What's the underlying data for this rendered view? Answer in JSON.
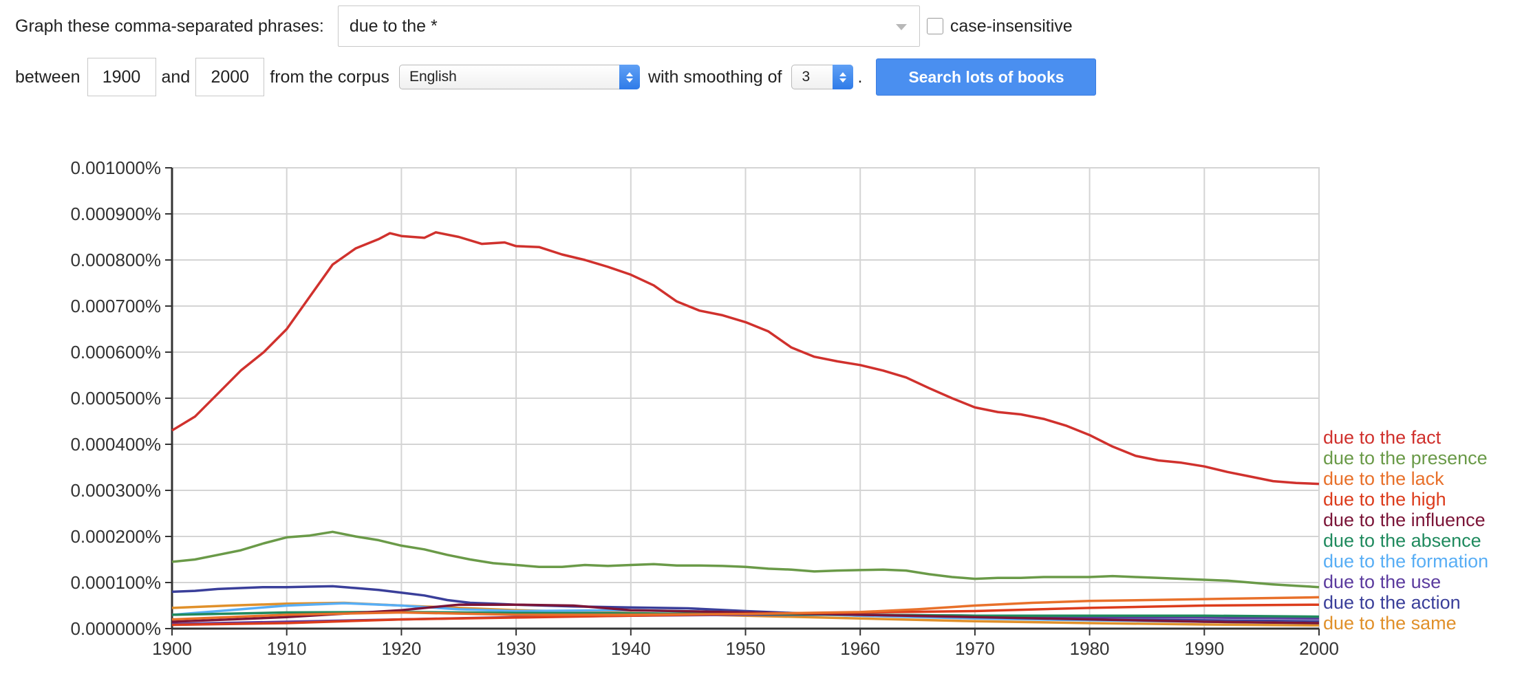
{
  "controls": {
    "phrases_label": "Graph these comma-separated phrases:",
    "query_value": "due to the *",
    "case_insensitive_label": "case-insensitive",
    "between_label": "between",
    "start_year": "1900",
    "and_label": "and",
    "end_year": "2000",
    "corpus_label": "from the corpus",
    "corpus_value": "English",
    "smoothing_label": "with smoothing of",
    "smoothing_value": "3",
    "period": ".",
    "search_button": "Search lots of books"
  },
  "chart_data": {
    "type": "line",
    "xlim": [
      1900,
      2000
    ],
    "ylim": [
      0,
      0.001
    ],
    "x_ticks": [
      "1900",
      "1910",
      "1920",
      "1930",
      "1940",
      "1950",
      "1960",
      "1970",
      "1980",
      "1990",
      "2000"
    ],
    "y_ticks": [
      "0.000000%",
      "0.000100%",
      "0.000200%",
      "0.000300%",
      "0.000400%",
      "0.000500%",
      "0.000600%",
      "0.000700%",
      "0.000800%",
      "0.000900%",
      "0.001000%"
    ],
    "grid": true,
    "legend_position": "right",
    "series": [
      {
        "name": "due to the fact",
        "color": "#d0312d",
        "label_color": "#d0312d",
        "points": [
          [
            1900,
            0.00043
          ],
          [
            1902,
            0.00046
          ],
          [
            1904,
            0.00051
          ],
          [
            1906,
            0.00056
          ],
          [
            1908,
            0.0006
          ],
          [
            1910,
            0.00065
          ],
          [
            1912,
            0.00072
          ],
          [
            1914,
            0.00079
          ],
          [
            1916,
            0.000825
          ],
          [
            1918,
            0.000845
          ],
          [
            1919,
            0.000858
          ],
          [
            1920,
            0.000852
          ],
          [
            1922,
            0.000848
          ],
          [
            1923,
            0.00086
          ],
          [
            1925,
            0.00085
          ],
          [
            1927,
            0.000835
          ],
          [
            1929,
            0.000838
          ],
          [
            1930,
            0.00083
          ],
          [
            1932,
            0.000828
          ],
          [
            1934,
            0.000812
          ],
          [
            1936,
            0.0008
          ],
          [
            1938,
            0.000785
          ],
          [
            1940,
            0.000768
          ],
          [
            1942,
            0.000745
          ],
          [
            1944,
            0.00071
          ],
          [
            1946,
            0.00069
          ],
          [
            1948,
            0.00068
          ],
          [
            1950,
            0.000665
          ],
          [
            1952,
            0.000645
          ],
          [
            1954,
            0.00061
          ],
          [
            1956,
            0.00059
          ],
          [
            1958,
            0.00058
          ],
          [
            1960,
            0.000572
          ],
          [
            1962,
            0.00056
          ],
          [
            1964,
            0.000545
          ],
          [
            1966,
            0.000522
          ],
          [
            1968,
            0.0005
          ],
          [
            1970,
            0.00048
          ],
          [
            1972,
            0.00047
          ],
          [
            1974,
            0.000465
          ],
          [
            1976,
            0.000455
          ],
          [
            1978,
            0.00044
          ],
          [
            1980,
            0.00042
          ],
          [
            1982,
            0.000395
          ],
          [
            1984,
            0.000375
          ],
          [
            1986,
            0.000365
          ],
          [
            1988,
            0.00036
          ],
          [
            1990,
            0.000352
          ],
          [
            1992,
            0.00034
          ],
          [
            1994,
            0.00033
          ],
          [
            1996,
            0.00032
          ],
          [
            1998,
            0.000316
          ],
          [
            2000,
            0.000314
          ]
        ]
      },
      {
        "name": "due to the presence",
        "color": "#6a9a48",
        "label_color": "#6a9a48",
        "points": [
          [
            1900,
            0.000145
          ],
          [
            1902,
            0.00015
          ],
          [
            1904,
            0.00016
          ],
          [
            1906,
            0.00017
          ],
          [
            1908,
            0.000185
          ],
          [
            1910,
            0.000198
          ],
          [
            1912,
            0.000202
          ],
          [
            1914,
            0.00021
          ],
          [
            1916,
            0.0002
          ],
          [
            1918,
            0.000192
          ],
          [
            1920,
            0.00018
          ],
          [
            1922,
            0.000172
          ],
          [
            1924,
            0.00016
          ],
          [
            1926,
            0.00015
          ],
          [
            1928,
            0.000142
          ],
          [
            1930,
            0.000138
          ],
          [
            1932,
            0.000134
          ],
          [
            1934,
            0.000134
          ],
          [
            1936,
            0.000138
          ],
          [
            1938,
            0.000136
          ],
          [
            1940,
            0.000138
          ],
          [
            1942,
            0.00014
          ],
          [
            1944,
            0.000137
          ],
          [
            1946,
            0.000137
          ],
          [
            1948,
            0.000136
          ],
          [
            1950,
            0.000134
          ],
          [
            1952,
            0.00013
          ],
          [
            1954,
            0.000128
          ],
          [
            1956,
            0.000124
          ],
          [
            1958,
            0.000126
          ],
          [
            1960,
            0.000127
          ],
          [
            1962,
            0.000128
          ],
          [
            1964,
            0.000126
          ],
          [
            1966,
            0.000118
          ],
          [
            1968,
            0.000112
          ],
          [
            1970,
            0.000108
          ],
          [
            1972,
            0.00011
          ],
          [
            1974,
            0.00011
          ],
          [
            1976,
            0.000112
          ],
          [
            1978,
            0.000112
          ],
          [
            1980,
            0.000112
          ],
          [
            1982,
            0.000114
          ],
          [
            1984,
            0.000112
          ],
          [
            1986,
            0.00011
          ],
          [
            1988,
            0.000108
          ],
          [
            1990,
            0.000106
          ],
          [
            1992,
            0.000104
          ],
          [
            1994,
            0.0001
          ],
          [
            1996,
            9.6e-05
          ],
          [
            1998,
            9.3e-05
          ],
          [
            2000,
            9e-05
          ]
        ]
      },
      {
        "name": "due to the lack",
        "color": "#e8702a",
        "label_color": "#e8702a",
        "points": [
          [
            1900,
            2e-05
          ],
          [
            1910,
            3e-05
          ],
          [
            1920,
            3.5e-05
          ],
          [
            1930,
            3e-05
          ],
          [
            1940,
            3e-05
          ],
          [
            1950,
            3.2e-05
          ],
          [
            1960,
            3.6e-05
          ],
          [
            1965,
            4.2e-05
          ],
          [
            1970,
            5e-05
          ],
          [
            1975,
            5.6e-05
          ],
          [
            1980,
            6e-05
          ],
          [
            1985,
            6.2e-05
          ],
          [
            1990,
            6.4e-05
          ],
          [
            1995,
            6.6e-05
          ],
          [
            2000,
            6.8e-05
          ]
        ]
      },
      {
        "name": "due to the high",
        "color": "#dc3c1c",
        "label_color": "#dc3c1c",
        "points": [
          [
            1900,
            8e-06
          ],
          [
            1910,
            1.2e-05
          ],
          [
            1920,
            2e-05
          ],
          [
            1930,
            2.4e-05
          ],
          [
            1940,
            2.8e-05
          ],
          [
            1950,
            3.2e-05
          ],
          [
            1960,
            3.5e-05
          ],
          [
            1970,
            3.8e-05
          ],
          [
            1980,
            4.5e-05
          ],
          [
            1990,
            5e-05
          ],
          [
            2000,
            5.2e-05
          ]
        ]
      },
      {
        "name": "due to the influence",
        "color": "#7b1538",
        "label_color": "#7b1538",
        "points": [
          [
            1900,
            1.5e-05
          ],
          [
            1910,
            2.5e-05
          ],
          [
            1920,
            4e-05
          ],
          [
            1925,
            5.2e-05
          ],
          [
            1930,
            5.2e-05
          ],
          [
            1935,
            5e-05
          ],
          [
            1940,
            4e-05
          ],
          [
            1950,
            3.5e-05
          ],
          [
            1960,
            3e-05
          ],
          [
            1970,
            2.5e-05
          ],
          [
            1980,
            2e-05
          ],
          [
            1990,
            1.5e-05
          ],
          [
            2000,
            1.2e-05
          ]
        ]
      },
      {
        "name": "due to the absence",
        "color": "#1f8a5e",
        "label_color": "#1f8a5e",
        "points": [
          [
            1900,
            3e-05
          ],
          [
            1910,
            3.5e-05
          ],
          [
            1920,
            3.6e-05
          ],
          [
            1930,
            3.4e-05
          ],
          [
            1940,
            3.3e-05
          ],
          [
            1950,
            3.2e-05
          ],
          [
            1960,
            3e-05
          ],
          [
            1970,
            2.8e-05
          ],
          [
            1980,
            2.8e-05
          ],
          [
            1990,
            2.8e-05
          ],
          [
            2000,
            2.6e-05
          ]
        ]
      },
      {
        "name": "due to the formation",
        "color": "#58aef5",
        "label_color": "#58aef5",
        "points": [
          [
            1900,
            3e-05
          ],
          [
            1905,
            4e-05
          ],
          [
            1910,
            5e-05
          ],
          [
            1915,
            5.5e-05
          ],
          [
            1920,
            5e-05
          ],
          [
            1925,
            4.2e-05
          ],
          [
            1930,
            3.8e-05
          ],
          [
            1940,
            4e-05
          ],
          [
            1950,
            3.5e-05
          ],
          [
            1960,
            2.8e-05
          ],
          [
            1970,
            2.2e-05
          ],
          [
            1980,
            1.8e-05
          ],
          [
            1990,
            1.5e-05
          ],
          [
            2000,
            1.2e-05
          ]
        ]
      },
      {
        "name": "due to the use",
        "color": "#5b3b9e",
        "label_color": "#5b3b9e",
        "points": [
          [
            1900,
            1e-05
          ],
          [
            1910,
            1.5e-05
          ],
          [
            1920,
            2e-05
          ],
          [
            1930,
            2.5e-05
          ],
          [
            1940,
            2.8e-05
          ],
          [
            1950,
            3e-05
          ],
          [
            1960,
            3e-05
          ],
          [
            1970,
            2.8e-05
          ],
          [
            1980,
            2.5e-05
          ],
          [
            1990,
            2.4e-05
          ],
          [
            2000,
            2.2e-05
          ]
        ]
      },
      {
        "name": "due to the action",
        "color": "#3a3f9a",
        "label_color": "#3a3f9a",
        "points": [
          [
            1900,
            8e-05
          ],
          [
            1902,
            8.2e-05
          ],
          [
            1904,
            8.6e-05
          ],
          [
            1906,
            8.8e-05
          ],
          [
            1908,
            9e-05
          ],
          [
            1910,
            9e-05
          ],
          [
            1912,
            9.1e-05
          ],
          [
            1914,
            9.2e-05
          ],
          [
            1916,
            8.8e-05
          ],
          [
            1918,
            8.4e-05
          ],
          [
            1920,
            7.8e-05
          ],
          [
            1922,
            7.2e-05
          ],
          [
            1924,
            6.2e-05
          ],
          [
            1926,
            5.6e-05
          ],
          [
            1928,
            5.4e-05
          ],
          [
            1930,
            5.2e-05
          ],
          [
            1935,
            4.8e-05
          ],
          [
            1940,
            4.6e-05
          ],
          [
            1945,
            4.4e-05
          ],
          [
            1950,
            3.8e-05
          ],
          [
            1955,
            3.3e-05
          ],
          [
            1960,
            2.8e-05
          ],
          [
            1970,
            2.4e-05
          ],
          [
            1980,
            2e-05
          ],
          [
            1990,
            1.8e-05
          ],
          [
            2000,
            1.6e-05
          ]
        ]
      },
      {
        "name": "due to the same",
        "color": "#e0902a",
        "label_color": "#e0902a",
        "points": [
          [
            1900,
            4.5e-05
          ],
          [
            1905,
            5e-05
          ],
          [
            1910,
            5.4e-05
          ],
          [
            1915,
            5.6e-05
          ],
          [
            1920,
            5e-05
          ],
          [
            1925,
            4.5e-05
          ],
          [
            1930,
            4e-05
          ],
          [
            1940,
            3.4e-05
          ],
          [
            1950,
            2.8e-05
          ],
          [
            1960,
            2.2e-05
          ],
          [
            1970,
            1.6e-05
          ],
          [
            1980,
            1.2e-05
          ],
          [
            1990,
            9e-06
          ],
          [
            2000,
            7e-06
          ]
        ]
      }
    ]
  }
}
